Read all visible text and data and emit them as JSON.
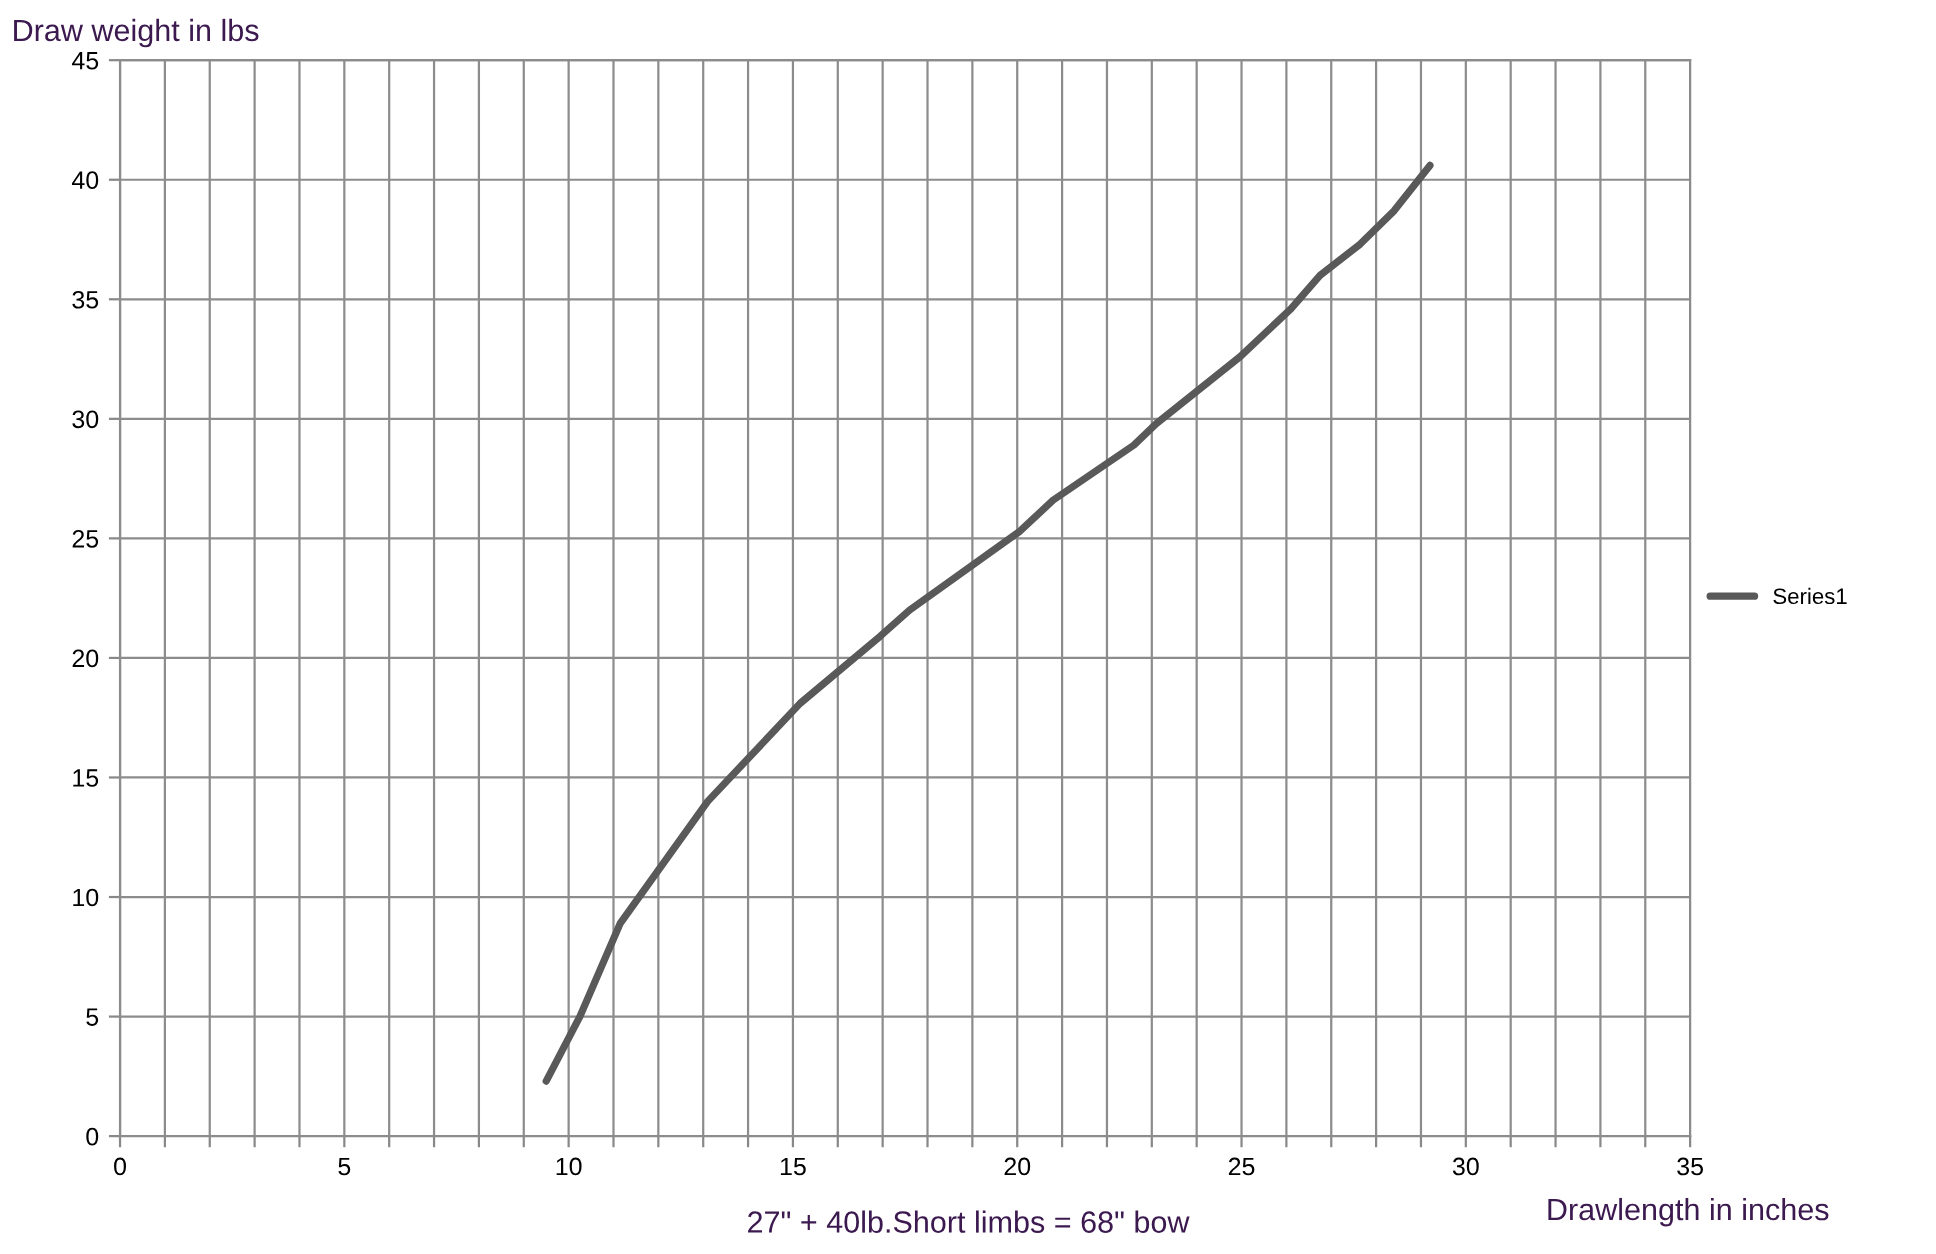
{
  "chart_data": {
    "type": "line",
    "title": "27\" + 40lb.Short limbs = 68\" bow",
    "xlabel": "Drawlength in inches",
    "ylabel": "Draw weight in lbs",
    "series": [
      {
        "name": "Series1",
        "color": "#595959",
        "x": [
          9.5,
          10.25,
          11.15,
          13.1,
          15.16,
          16.94,
          17.6,
          20.06,
          20.8,
          22.6,
          23.1,
          24.97,
          26.1,
          26.75,
          27.64,
          28.4,
          29.2
        ],
        "values": [
          2.3,
          5.0,
          8.9,
          14.0,
          18.1,
          20.9,
          22.0,
          25.3,
          26.6,
          28.9,
          29.8,
          32.6,
          34.6,
          36.0,
          37.3,
          38.7,
          40.6
        ]
      }
    ],
    "xlim": [
      0,
      35
    ],
    "ylim": [
      0,
      45
    ],
    "xticks": [
      0,
      {
        "value": 1,
        "label": null
      },
      {
        "value": 2,
        "label": null
      },
      {
        "value": 3,
        "label": null
      },
      {
        "value": 4,
        "label": null
      },
      5,
      {
        "value": 6,
        "label": null
      },
      {
        "value": 7,
        "label": null
      },
      {
        "value": 8,
        "label": null
      },
      {
        "value": 9,
        "label": null
      },
      10,
      {
        "value": 11,
        "label": null
      },
      {
        "value": 12,
        "label": null
      },
      {
        "value": 13,
        "label": null
      },
      {
        "value": 14,
        "label": null
      },
      15,
      {
        "value": 16,
        "label": null
      },
      {
        "value": 17,
        "label": null
      },
      {
        "value": 18,
        "label": null
      },
      {
        "value": 19,
        "label": null
      },
      20,
      {
        "value": 21,
        "label": null
      },
      {
        "value": 22,
        "label": null
      },
      {
        "value": 23,
        "label": null
      },
      {
        "value": 24,
        "label": null
      },
      25,
      {
        "value": 26,
        "label": null
      },
      {
        "value": 27,
        "label": null
      },
      {
        "value": 28,
        "label": null
      },
      {
        "value": 29,
        "label": null
      },
      30,
      {
        "value": 31,
        "label": null
      },
      {
        "value": 32,
        "label": null
      },
      {
        "value": 33,
        "label": null
      },
      {
        "value": 34,
        "label": null
      },
      35
    ],
    "yticks": [
      0,
      5,
      10,
      15,
      20,
      25,
      30,
      35,
      40,
      45
    ],
    "grid": true,
    "legend": "right",
    "marker": "none",
    "line_style": "solid"
  }
}
